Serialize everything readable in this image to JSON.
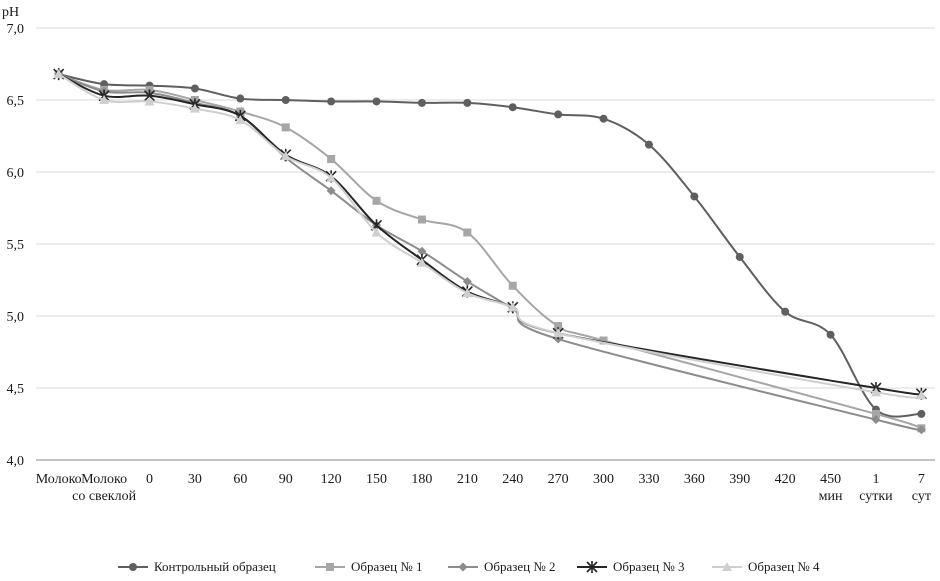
{
  "chart_data": {
    "type": "line",
    "ylabel": "pH",
    "ylim": [
      4.0,
      7.0
    ],
    "y_ticks": [
      "4,0",
      "4,5",
      "5,0",
      "5,5",
      "6,0",
      "6,5",
      "7,0"
    ],
    "y_tick_values": [
      4.0,
      4.5,
      5.0,
      5.5,
      6.0,
      6.5,
      7.0
    ],
    "grid": "horizontal",
    "legend_position": "bottom",
    "categories": [
      [
        "Молоко"
      ],
      [
        "Молоко",
        "со свеклой"
      ],
      [
        "0"
      ],
      [
        "30"
      ],
      [
        "60"
      ],
      [
        "90"
      ],
      [
        "120"
      ],
      [
        "150"
      ],
      [
        "180"
      ],
      [
        "210"
      ],
      [
        "240"
      ],
      [
        "270"
      ],
      [
        "300"
      ],
      [
        "330"
      ],
      [
        "360"
      ],
      [
        "390"
      ],
      [
        "420"
      ],
      [
        "450",
        "мин"
      ],
      [
        "1",
        "сутки"
      ],
      [
        "7",
        "сут"
      ]
    ],
    "series": [
      {
        "name": "Контрольный образец",
        "color": "#5f5f5f",
        "marker": "circle",
        "values": [
          6.68,
          6.61,
          6.6,
          6.58,
          6.51,
          6.5,
          6.49,
          6.49,
          6.48,
          6.48,
          6.45,
          6.4,
          6.37,
          6.19,
          5.83,
          5.41,
          5.03,
          4.87,
          4.35,
          4.32
        ]
      },
      {
        "name": "Образец № 1",
        "color": "#a6a6a6",
        "marker": "square",
        "values": [
          6.68,
          6.57,
          6.57,
          6.5,
          6.42,
          6.31,
          6.09,
          5.8,
          5.67,
          5.58,
          5.21,
          4.93,
          4.83,
          null,
          null,
          null,
          null,
          null,
          4.32,
          4.22
        ]
      },
      {
        "name": "Образец № 2",
        "color": "#8c8c8c",
        "marker": "diamond",
        "values": [
          6.68,
          6.56,
          6.55,
          6.48,
          6.39,
          6.1,
          5.87,
          5.63,
          5.45,
          5.24,
          5.05,
          4.84,
          null,
          null,
          null,
          null,
          null,
          null,
          4.28,
          4.21
        ]
      },
      {
        "name": "Образец № 3",
        "color": "#262626",
        "marker": "star",
        "values": [
          6.68,
          6.53,
          6.53,
          6.47,
          6.39,
          6.12,
          5.97,
          5.63,
          5.39,
          5.17,
          5.06,
          4.88,
          null,
          null,
          null,
          null,
          null,
          null,
          4.5,
          4.46
        ]
      },
      {
        "name": "Образец № 4",
        "color": "#cfcfcf",
        "marker": "triangle",
        "values": [
          6.68,
          6.5,
          6.49,
          6.44,
          6.36,
          6.11,
          5.96,
          5.58,
          5.37,
          5.16,
          5.06,
          4.88,
          null,
          null,
          null,
          null,
          null,
          null,
          4.47,
          4.45
        ]
      }
    ]
  }
}
